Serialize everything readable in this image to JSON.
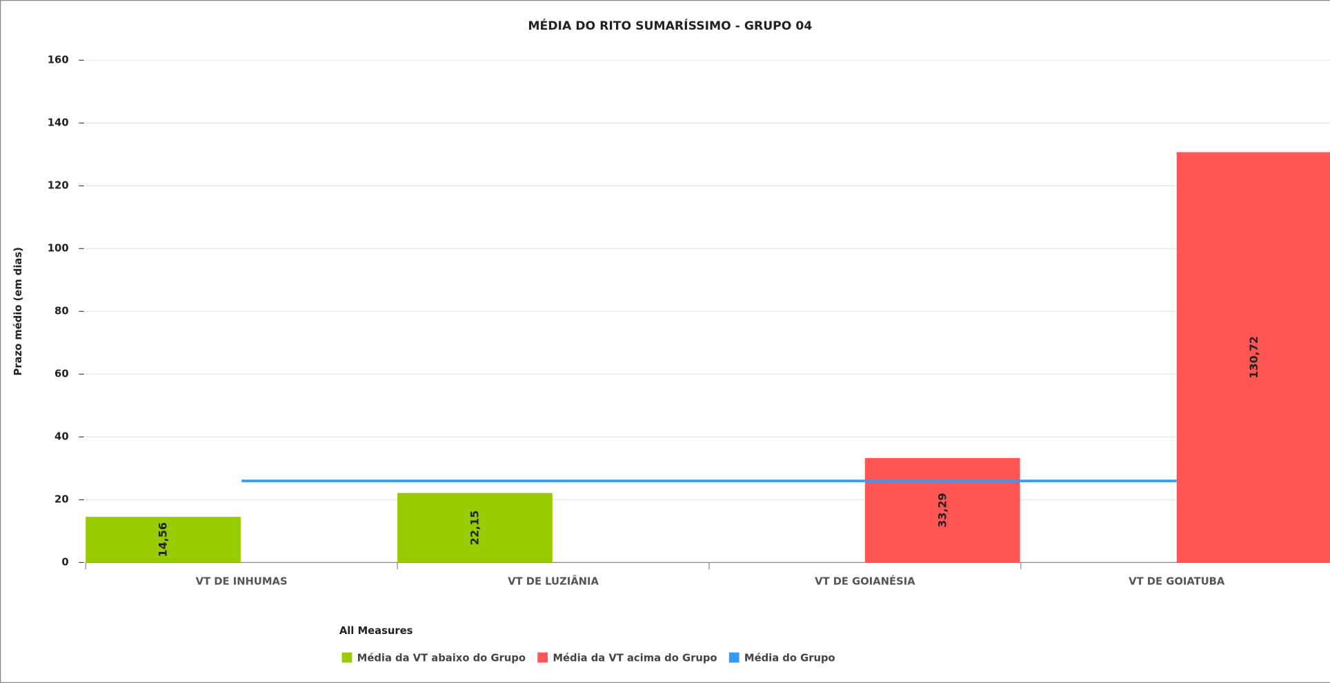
{
  "chart_data": {
    "type": "bar",
    "title": "MÉDIA DO RITO SUMARÍSSIMO - GRUPO 04",
    "y_label": "Prazo médio (em dias)",
    "legend_title": "All Measures",
    "categories": [
      "VT DE INHUMAS",
      "VT DE LUZIÂNIA",
      "VT DE GOIANÉSIA",
      "VT DE GOIATUBA"
    ],
    "series": [
      {
        "name": "Média da VT abaixo do Grupo",
        "type": "bar",
        "color": "#99cc00",
        "values": [
          14.56,
          22.15,
          null,
          null
        ],
        "value_labels": [
          "14,56",
          "22,15",
          null,
          null
        ]
      },
      {
        "name": "Média da VT acima do Grupo",
        "type": "bar",
        "color": "#ff5555",
        "values": [
          null,
          null,
          33.29,
          130.72
        ],
        "value_labels": [
          null,
          null,
          "33,29",
          "130,72"
        ]
      },
      {
        "name": "Média do Grupo",
        "type": "line",
        "color": "#3399ff",
        "values": [
          26,
          26,
          26,
          26
        ]
      }
    ],
    "ylim": [
      0,
      160
    ],
    "yticks": [
      0,
      20,
      40,
      60,
      80,
      100,
      120,
      140,
      160
    ],
    "grid": true
  }
}
